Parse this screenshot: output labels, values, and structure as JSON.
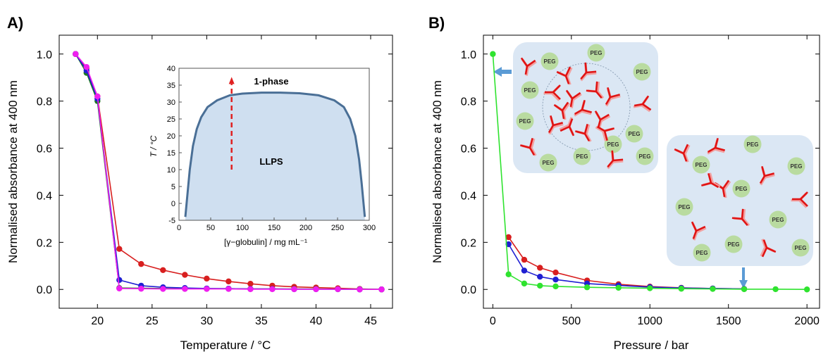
{
  "panels": [
    {
      "label": "A)"
    },
    {
      "label": "B)"
    }
  ],
  "colors": {
    "red": "#d81f1f",
    "blue": "#1f1fd2",
    "green": "#2fe32f",
    "magenta": "#f01ef0",
    "darkgreen": "#207a20",
    "phase_fill": "#cfdff0",
    "phase_curve": "#4a6f96",
    "inset_bg": "#dbe7f4",
    "arrow_blue": "#5b9bd5",
    "peg_fill": "#b9dba0"
  },
  "chart_data": [
    {
      "type": "line",
      "panel": "A)",
      "xlabel": "Temperature / °C",
      "ylabel": "Normalised absorbance at 400 nm",
      "xlim": [
        16.5,
        47
      ],
      "ylim": [
        -0.08,
        1.08
      ],
      "xticks": [
        20,
        25,
        30,
        35,
        40,
        45
      ],
      "yticks": [
        0.0,
        0.2,
        0.4,
        0.6,
        0.8,
        1.0
      ],
      "xtick_labels": [
        "20",
        "25",
        "30",
        "35",
        "40",
        "45"
      ],
      "ytick_labels": [
        "0.0",
        "0.2",
        "0.4",
        "0.6",
        "0.8",
        "1.0"
      ],
      "series": [
        {
          "color": "red",
          "x": [
            18,
            19,
            20,
            22,
            24,
            26,
            28,
            30,
            32,
            34,
            36,
            38,
            40,
            42,
            44,
            46
          ],
          "y": [
            1.0,
            0.94,
            0.82,
            0.172,
            0.108,
            0.082,
            0.062,
            0.046,
            0.034,
            0.024,
            0.016,
            0.011,
            0.008,
            0.005,
            0.002,
            0.0
          ]
        },
        {
          "color": "darkgreen",
          "x": [
            18,
            19,
            20,
            22,
            24,
            26,
            28,
            30,
            32,
            34,
            36,
            38,
            40,
            42,
            44,
            46
          ],
          "y": [
            1.0,
            0.92,
            0.8,
            0.006,
            0.005,
            0.004,
            0.003,
            0.003,
            0.003,
            0.002,
            0.002,
            0.002,
            0.002,
            0.001,
            0.001,
            0.0
          ]
        },
        {
          "color": "blue",
          "x": [
            18,
            19,
            20,
            22,
            24,
            26,
            28,
            30,
            32,
            34,
            36,
            38,
            40,
            42,
            44,
            46
          ],
          "y": [
            1.0,
            0.93,
            0.81,
            0.04,
            0.016,
            0.009,
            0.006,
            0.004,
            0.003,
            0.002,
            0.002,
            0.001,
            0.001,
            0.001,
            0.0,
            0.0
          ]
        },
        {
          "color": "magenta",
          "x": [
            18,
            19,
            20,
            22,
            24,
            26,
            28,
            30,
            32,
            34,
            36,
            38,
            40,
            42,
            44,
            46
          ],
          "y": [
            1.0,
            0.945,
            0.82,
            0.004,
            0.003,
            0.002,
            0.002,
            0.002,
            0.002,
            0.001,
            0.001,
            0.001,
            0.001,
            0.001,
            0.0,
            0.0
          ]
        }
      ],
      "inset": {
        "type": "area",
        "xlabel": "[γ−globulin] / mg mL⁻¹",
        "ylabel": "T / °C",
        "xlim": [
          0,
          300
        ],
        "ylim": [
          -5,
          40
        ],
        "xticks": [
          0,
          50,
          100,
          150,
          200,
          250,
          300
        ],
        "yticks": [
          -5,
          0,
          5,
          10,
          15,
          20,
          25,
          30,
          35,
          40
        ],
        "xtick_labels": [
          "0",
          "50",
          "100",
          "150",
          "200",
          "250",
          "300"
        ],
        "ytick_labels": [
          "-5",
          "0",
          "5",
          "10",
          "15",
          "20",
          "25",
          "30",
          "35",
          "40"
        ],
        "region_labels": [
          "1-phase",
          "LLPS"
        ],
        "curve_x": [
          10,
          13,
          17,
          22,
          28,
          35,
          45,
          60,
          80,
          100,
          130,
          160,
          190,
          220,
          245,
          260,
          270,
          278,
          284,
          288,
          291,
          293
        ],
        "curve_y": [
          -4,
          2,
          10,
          17,
          22,
          25.5,
          28.5,
          30.5,
          32,
          32.5,
          32.8,
          32.8,
          32.6,
          32,
          30.5,
          28.5,
          25,
          20,
          13,
          6,
          0,
          -4
        ],
        "arrow": {
          "x": 83,
          "y_from": 10,
          "y_to": 37
        }
      }
    },
    {
      "type": "line",
      "panel": "B)",
      "xlabel": "Pressure / bar",
      "ylabel": "Normalised absorbance at 400 nm",
      "xlim": [
        -60,
        2080
      ],
      "ylim": [
        -0.08,
        1.08
      ],
      "xticks": [
        0,
        500,
        1000,
        1500,
        2000
      ],
      "yticks": [
        0.0,
        0.2,
        0.4,
        0.6,
        0.8,
        1.0
      ],
      "xtick_labels": [
        "0",
        "500",
        "1000",
        "1500",
        "2000"
      ],
      "ytick_labels": [
        "0.0",
        "0.2",
        "0.4",
        "0.6",
        "0.8",
        "1.0"
      ],
      "series": [
        {
          "color": "red",
          "x": [
            100,
            200,
            300,
            400,
            600,
            800,
            1000,
            1200,
            1400,
            1600
          ],
          "y": [
            0.222,
            0.126,
            0.092,
            0.072,
            0.038,
            0.022,
            0.012,
            0.007,
            0.004,
            0.002
          ]
        },
        {
          "color": "blue",
          "x": [
            100,
            200,
            300,
            400,
            600,
            800,
            1000,
            1200,
            1400,
            1600
          ],
          "y": [
            0.192,
            0.08,
            0.054,
            0.042,
            0.025,
            0.017,
            0.01,
            0.006,
            0.004,
            0.002
          ]
        },
        {
          "color": "green",
          "x": [
            0,
            100,
            200,
            300,
            400,
            600,
            800,
            1000,
            1200,
            1400,
            1600,
            1800,
            2000
          ],
          "y": [
            1.0,
            0.064,
            0.025,
            0.016,
            0.013,
            0.009,
            0.007,
            0.005,
            0.003,
            0.002,
            0.001,
            0.001,
            0.0
          ]
        }
      ],
      "illustration": {
        "peg_label": "PEG"
      }
    }
  ]
}
